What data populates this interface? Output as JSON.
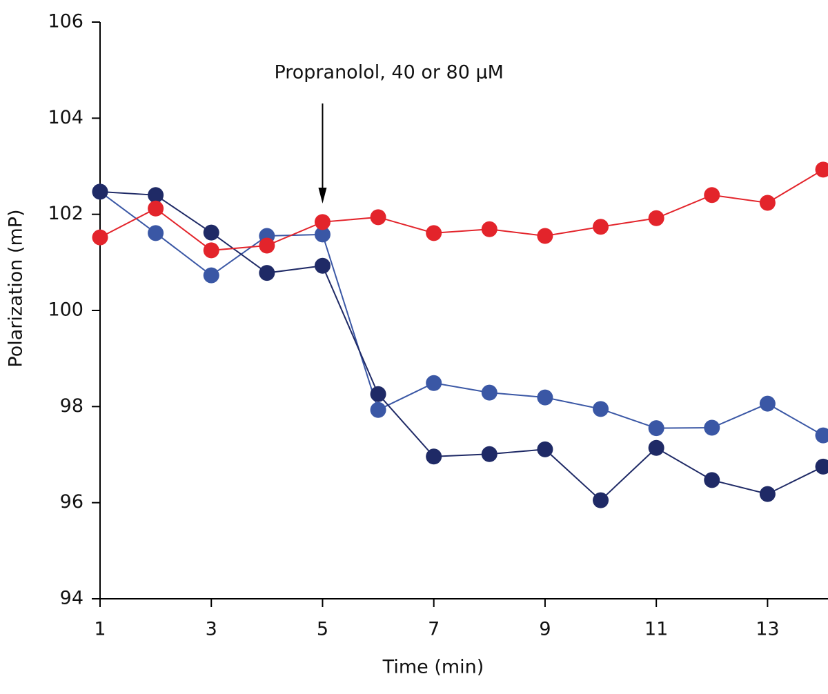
{
  "chart_data": {
    "type": "line",
    "x_label": "Time (min)",
    "y_label": "Polarization (mP)",
    "annotation": {
      "text": "Propranolol, 40 or 80 μM",
      "x": 5
    },
    "x": [
      1,
      2,
      3,
      4,
      5,
      6,
      7,
      8,
      9,
      10,
      11,
      12,
      13,
      14
    ],
    "series": [
      {
        "color": "#3a57a5",
        "values": [
          102.47,
          101.61,
          100.73,
          101.55,
          101.58,
          97.93,
          98.49,
          98.29,
          98.19,
          97.95,
          97.55,
          97.56,
          98.06,
          97.4
        ]
      },
      {
        "color": "#1f2a66",
        "values": [
          102.47,
          102.4,
          101.62,
          100.78,
          100.93,
          98.26,
          96.96,
          97.01,
          97.11,
          96.05,
          97.14,
          96.47,
          96.18,
          96.75
        ]
      },
      {
        "color": "#e3242b",
        "values": [
          101.52,
          102.12,
          101.25,
          101.35,
          101.84,
          101.94,
          101.61,
          101.69,
          101.55,
          101.74,
          101.92,
          102.4,
          102.24,
          102.93
        ]
      }
    ],
    "xlim": [
      1,
      14
    ],
    "xticks": [
      1,
      3,
      5,
      7,
      9,
      11,
      13
    ],
    "ylim": [
      94,
      106
    ],
    "yticks": [
      94,
      96,
      98,
      100,
      102,
      104,
      106
    ]
  }
}
